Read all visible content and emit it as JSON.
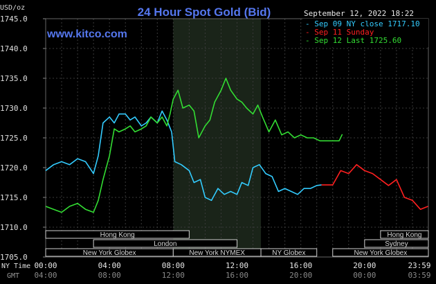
{
  "chart_data": {
    "type": "line",
    "title": "24 Hour Spot Gold (Bid)",
    "ylabel": "USD/oz",
    "website": "www.kitco.com",
    "timestamp": "September 12, 2022 18:22",
    "ylim": [
      1705.0,
      1745.0
    ],
    "yticks": [
      "1745.0",
      "1740.0",
      "1735.0",
      "1730.0",
      "1725.0",
      "1720.0",
      "1715.0",
      "1710.0",
      "1705.0"
    ],
    "x_axis": {
      "label_top": "NY Time",
      "label_bottom": "GMT",
      "ny_ticks": [
        "00:00",
        "04:00",
        "08:00",
        "12:00",
        "16:00",
        "20:00",
        "23:59"
      ],
      "gmt_ticks": [
        "04:00",
        "08:00",
        "12:00",
        "16:00",
        "20:00",
        "00:00",
        "03:59"
      ]
    },
    "legend": [
      {
        "text": "Sep 09 NY close 1717.10",
        "color": "#33ccff"
      },
      {
        "text": "Sep 11 Sunday",
        "color": "#ff2020"
      },
      {
        "text": "Sep 12 Last 1725.60",
        "color": "#33dd33"
      }
    ],
    "series": [
      {
        "name": "Sep 09 NY close 1717.10",
        "color": "#33ccff",
        "x": [
          0.0,
          0.5,
          1.0,
          1.5,
          2.0,
          2.5,
          3.0,
          3.3,
          3.6,
          4.0,
          4.3,
          4.6,
          5.0,
          5.3,
          5.6,
          6.0,
          6.3,
          6.6,
          7.0,
          7.3,
          7.6,
          7.9,
          8.1,
          8.5,
          9.0,
          9.3,
          9.7,
          10.0,
          10.4,
          10.8,
          11.2,
          11.6,
          12.0,
          12.3,
          12.7,
          13.0,
          13.4,
          13.8,
          14.2,
          14.6,
          15.0,
          15.4,
          15.8,
          16.2,
          16.6,
          17.0,
          17.3
        ],
        "y": [
          1719.5,
          1720.5,
          1721.0,
          1720.5,
          1721.5,
          1721.0,
          1719.0,
          1722.0,
          1727.5,
          1728.5,
          1727.5,
          1729.0,
          1729.0,
          1728.0,
          1728.5,
          1727.0,
          1727.5,
          1728.5,
          1727.5,
          1729.5,
          1728.0,
          1726.0,
          1721.0,
          1720.5,
          1719.5,
          1717.5,
          1718.0,
          1715.0,
          1714.5,
          1716.5,
          1715.5,
          1716.0,
          1715.5,
          1717.5,
          1717.0,
          1720.0,
          1720.5,
          1719.0,
          1718.5,
          1716.0,
          1716.5,
          1716.0,
          1715.5,
          1716.5,
          1716.5,
          1717.0,
          1717.1
        ]
      },
      {
        "name": "Sep 11 Sunday",
        "color": "#ff2020",
        "x": [
          17.3,
          18.0,
          18.5,
          19.0,
          19.5,
          20.0,
          20.5,
          21.0,
          21.5,
          22.0,
          22.5,
          23.0,
          23.5,
          23.98
        ],
        "y": [
          1717.1,
          1717.1,
          1719.5,
          1719.0,
          1720.5,
          1719.5,
          1719.0,
          1718.0,
          1717.0,
          1718.0,
          1715.0,
          1714.5,
          1713.0,
          1713.5
        ]
      },
      {
        "name": "Sep 12 Last 1725.60",
        "color": "#33dd33",
        "x": [
          0.0,
          0.5,
          1.0,
          1.5,
          2.0,
          2.5,
          3.0,
          3.3,
          3.6,
          4.0,
          4.3,
          4.6,
          5.0,
          5.3,
          5.6,
          6.0,
          6.3,
          6.6,
          7.0,
          7.3,
          7.6,
          7.8,
          8.0,
          8.3,
          8.6,
          9.0,
          9.3,
          9.6,
          10.0,
          10.3,
          10.6,
          11.0,
          11.3,
          11.6,
          12.0,
          12.3,
          12.6,
          13.0,
          13.3,
          13.6,
          14.0,
          14.4,
          14.8,
          15.2,
          15.6,
          16.0,
          16.4,
          16.8,
          17.2,
          17.6,
          18.0,
          18.4,
          18.6
        ],
        "y": [
          1713.5,
          1713.0,
          1712.5,
          1713.5,
          1714.0,
          1713.0,
          1712.5,
          1714.5,
          1718.0,
          1722.0,
          1726.5,
          1726.0,
          1726.5,
          1727.0,
          1726.0,
          1726.5,
          1727.0,
          1728.5,
          1727.5,
          1728.5,
          1727.0,
          1729.0,
          1731.5,
          1733.0,
          1730.0,
          1730.5,
          1729.5,
          1725.0,
          1727.0,
          1728.0,
          1731.0,
          1733.0,
          1735.0,
          1733.0,
          1731.5,
          1731.0,
          1730.0,
          1729.0,
          1730.5,
          1728.5,
          1726.0,
          1728.0,
          1725.5,
          1726.0,
          1725.0,
          1725.5,
          1725.0,
          1725.0,
          1724.5,
          1724.5,
          1724.5,
          1724.5,
          1725.6
        ]
      }
    ],
    "shaded_region_hours": [
      8.0,
      13.5
    ],
    "markets": [
      {
        "name": "Hong Kong",
        "row": 1,
        "start": 0.0,
        "end": 9.0
      },
      {
        "name": "London",
        "row": 2,
        "start": 3.0,
        "end": 12.0
      },
      {
        "name": "New York Globex",
        "row": 3,
        "start": 0.0,
        "end": 8.0
      },
      {
        "name": "New York NYMEX",
        "row": 3,
        "start": 8.0,
        "end": 13.5
      },
      {
        "name": "NY Globex",
        "row": 3,
        "start": 13.5,
        "end": 17.0
      },
      {
        "name": "Hong Kong",
        "row": 1,
        "start": 21.0,
        "end": 24.0
      },
      {
        "name": "Sydney",
        "row": 2,
        "start": 20.0,
        "end": 24.0
      },
      {
        "name": "New York Globex",
        "row": 3,
        "start": 18.0,
        "end": 24.0
      }
    ]
  }
}
